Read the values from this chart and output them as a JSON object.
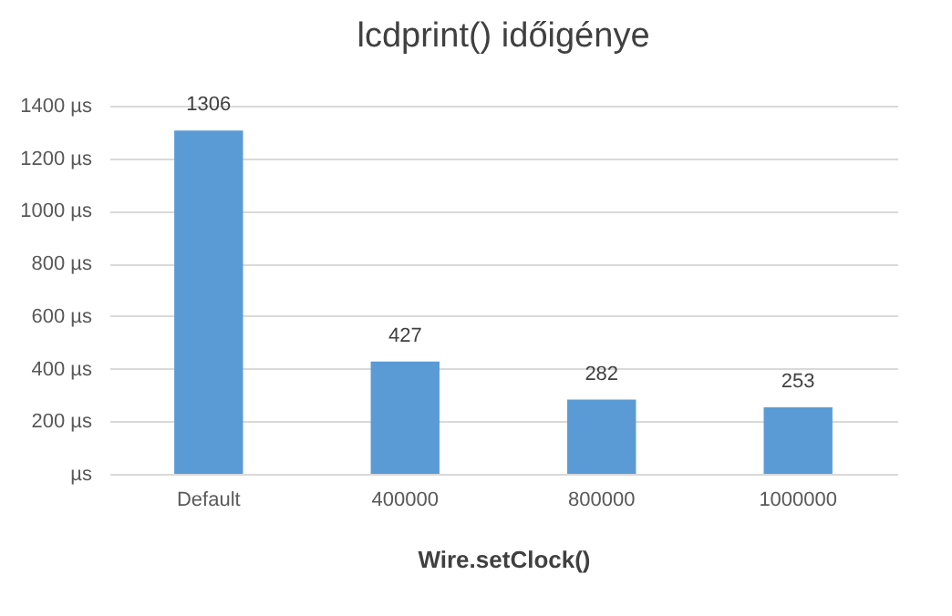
{
  "chart_data": {
    "type": "bar",
    "title": "lcdprint() időigénye",
    "xlabel": "Wire.setClock()",
    "categories": [
      "Default",
      "400000",
      "800000",
      "1000000"
    ],
    "values": [
      1306,
      427,
      282,
      253
    ],
    "color": "#5b9bd5",
    "ylim": [
      0,
      1400
    ],
    "yticks": [
      {
        "value": 0,
        "label": "µs"
      },
      {
        "value": 200,
        "label": "200 µs"
      },
      {
        "value": 400,
        "label": "400 µs"
      },
      {
        "value": 600,
        "label": "600 µs"
      },
      {
        "value": 800,
        "label": "800 µs"
      },
      {
        "value": 1000,
        "label": "1000 µs"
      },
      {
        "value": 1200,
        "label": "1200 µs"
      },
      {
        "value": 1400,
        "label": "1400 µs"
      }
    ],
    "grid": true,
    "data_labels": true
  }
}
